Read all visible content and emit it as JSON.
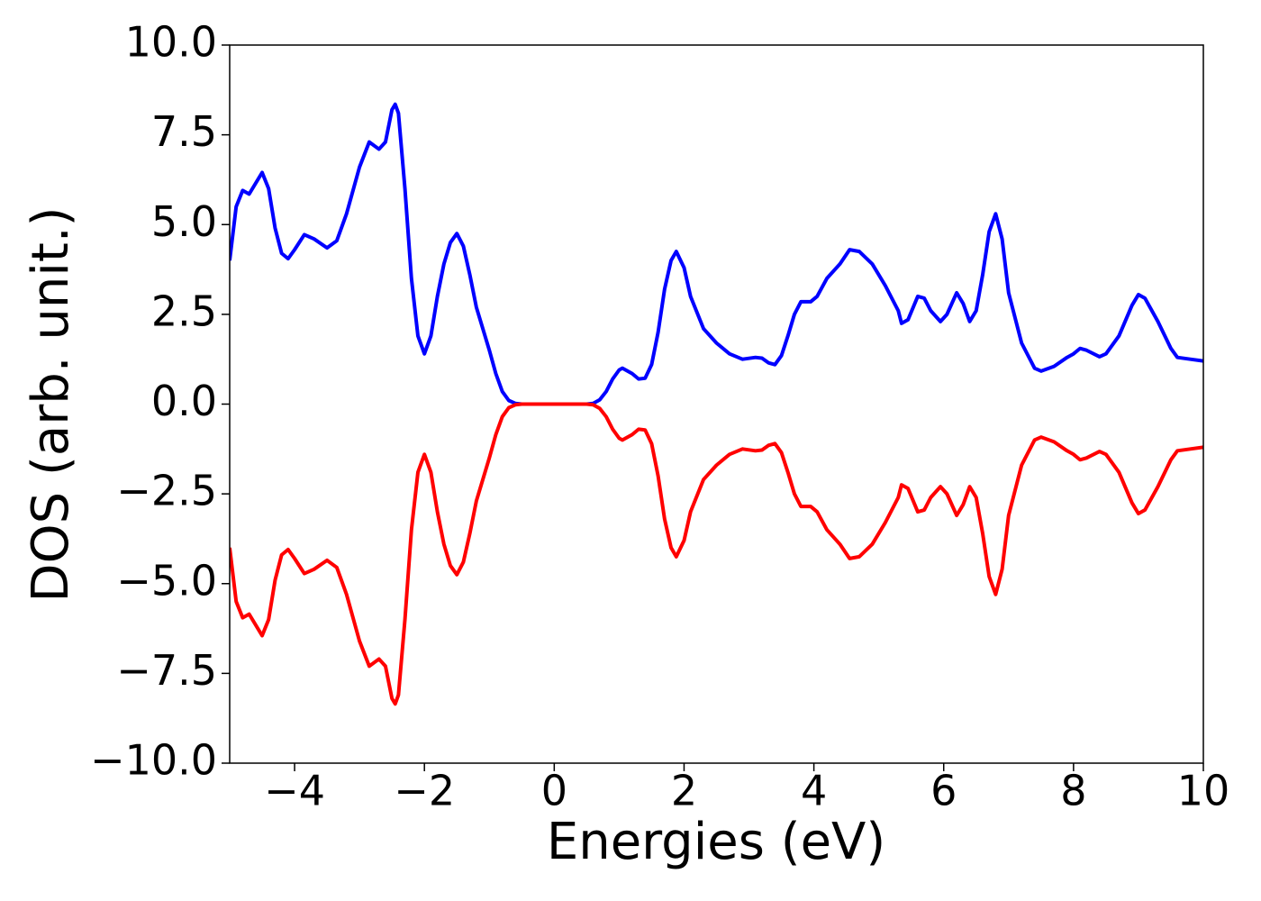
{
  "chart_data": {
    "type": "line",
    "xlabel": "Energies (eV)",
    "ylabel": "DOS (arb. unit.)",
    "x": [
      -5,
      -4.9,
      -4.8,
      -4.7,
      -4.5,
      -4.4,
      -4.3,
      -4.2,
      -4.1,
      -4.0,
      -3.85,
      -3.7,
      -3.5,
      -3.35,
      -3.2,
      -3.0,
      -2.85,
      -2.7,
      -2.6,
      -2.5,
      -2.45,
      -2.4,
      -2.3,
      -2.2,
      -2.1,
      -2.0,
      -1.9,
      -1.8,
      -1.7,
      -1.6,
      -1.5,
      -1.4,
      -1.3,
      -1.2,
      -1.1,
      -1.0,
      -0.9,
      -0.8,
      -0.7,
      -0.6,
      -0.5,
      0,
      0.5,
      0.6,
      0.7,
      0.8,
      0.9,
      1.0,
      1.05,
      1.2,
      1.3,
      1.4,
      1.5,
      1.6,
      1.7,
      1.8,
      1.88,
      2.0,
      2.1,
      2.3,
      2.5,
      2.7,
      2.9,
      3.1,
      3.2,
      3.3,
      3.4,
      3.5,
      3.6,
      3.7,
      3.8,
      3.95,
      4.05,
      4.2,
      4.4,
      4.55,
      4.7,
      4.9,
      5.1,
      5.3,
      5.35,
      5.45,
      5.6,
      5.7,
      5.8,
      5.95,
      6.05,
      6.2,
      6.3,
      6.4,
      6.5,
      6.6,
      6.7,
      6.8,
      6.9,
      7.0,
      7.2,
      7.4,
      7.5,
      7.7,
      7.9,
      8.0,
      8.1,
      8.2,
      8.4,
      8.5,
      8.7,
      8.9,
      9.0,
      9.1,
      9.3,
      9.5,
      9.6,
      9.8,
      10
    ],
    "series": [
      {
        "color": "#0000ff",
        "values": [
          4.0,
          5.5,
          5.95,
          5.85,
          6.45,
          6.0,
          4.9,
          4.2,
          4.05,
          4.3,
          4.72,
          4.6,
          4.35,
          4.55,
          5.3,
          6.6,
          7.3,
          7.1,
          7.3,
          8.2,
          8.35,
          8.1,
          6.0,
          3.5,
          1.9,
          1.4,
          1.9,
          3.0,
          3.9,
          4.5,
          4.75,
          4.4,
          3.6,
          2.7,
          2.1,
          1.5,
          0.85,
          0.35,
          0.1,
          0.02,
          0,
          0,
          0,
          0.02,
          0.12,
          0.35,
          0.7,
          0.95,
          1.0,
          0.85,
          0.7,
          0.72,
          1.1,
          2.0,
          3.2,
          4.0,
          4.25,
          3.8,
          3.0,
          2.1,
          1.7,
          1.4,
          1.25,
          1.3,
          1.28,
          1.15,
          1.1,
          1.35,
          1.9,
          2.5,
          2.85,
          2.85,
          3.0,
          3.5,
          3.9,
          4.3,
          4.25,
          3.9,
          3.3,
          2.6,
          2.25,
          2.35,
          3.0,
          2.95,
          2.6,
          2.3,
          2.5,
          3.1,
          2.8,
          2.3,
          2.6,
          3.6,
          4.8,
          5.3,
          4.6,
          3.1,
          1.7,
          1.0,
          0.92,
          1.05,
          1.3,
          1.4,
          1.55,
          1.5,
          1.32,
          1.4,
          1.9,
          2.75,
          3.05,
          2.95,
          2.3,
          1.55,
          1.3,
          1.25,
          1.2
        ]
      },
      {
        "color": "#ff0000",
        "values": [
          -4.0,
          -5.5,
          -5.95,
          -5.85,
          -6.45,
          -6.0,
          -4.9,
          -4.2,
          -4.05,
          -4.3,
          -4.72,
          -4.6,
          -4.35,
          -4.55,
          -5.3,
          -6.6,
          -7.3,
          -7.1,
          -7.3,
          -8.2,
          -8.35,
          -8.1,
          -6.0,
          -3.5,
          -1.9,
          -1.4,
          -1.9,
          -3.0,
          -3.9,
          -4.5,
          -4.75,
          -4.4,
          -3.6,
          -2.7,
          -2.1,
          -1.5,
          -0.85,
          -0.35,
          -0.1,
          -0.02,
          0,
          0,
          0,
          -0.02,
          -0.12,
          -0.35,
          -0.7,
          -0.95,
          -1.0,
          -0.85,
          -0.7,
          -0.72,
          -1.1,
          -2.0,
          -3.2,
          -4.0,
          -4.25,
          -3.8,
          -3.0,
          -2.1,
          -1.7,
          -1.4,
          -1.25,
          -1.3,
          -1.28,
          -1.15,
          -1.1,
          -1.35,
          -1.9,
          -2.5,
          -2.85,
          -2.85,
          -3.0,
          -3.5,
          -3.9,
          -4.3,
          -4.25,
          -3.9,
          -3.3,
          -2.6,
          -2.25,
          -2.35,
          -3.0,
          -2.95,
          -2.6,
          -2.3,
          -2.5,
          -3.1,
          -2.8,
          -2.3,
          -2.6,
          -3.6,
          -4.8,
          -5.3,
          -4.6,
          -3.1,
          -1.7,
          -1.0,
          -0.92,
          -1.05,
          -1.3,
          -1.4,
          -1.55,
          -1.5,
          -1.32,
          -1.4,
          -1.9,
          -2.75,
          -3.05,
          -2.95,
          -2.3,
          -1.55,
          -1.3,
          -1.25,
          -1.2
        ]
      }
    ],
    "xlim": [
      -5,
      10
    ],
    "xticks": [
      {
        "value": -4,
        "label": "−4"
      },
      {
        "value": -2,
        "label": "−2"
      },
      0,
      2,
      4,
      6,
      8,
      10
    ],
    "ylim": [
      -10,
      10
    ],
    "yticks": [
      {
        "value": -10,
        "label": "−10.0"
      },
      {
        "value": -7.5,
        "label": "−7.5"
      },
      {
        "value": -5,
        "label": "−5.0"
      },
      {
        "value": -2.5,
        "label": "−2.5"
      },
      {
        "value": 0,
        "label": "0.0"
      },
      2.5,
      {
        "value": 5,
        "label": "5.0"
      },
      7.5,
      {
        "value": 10,
        "label": "10.0"
      }
    ]
  }
}
